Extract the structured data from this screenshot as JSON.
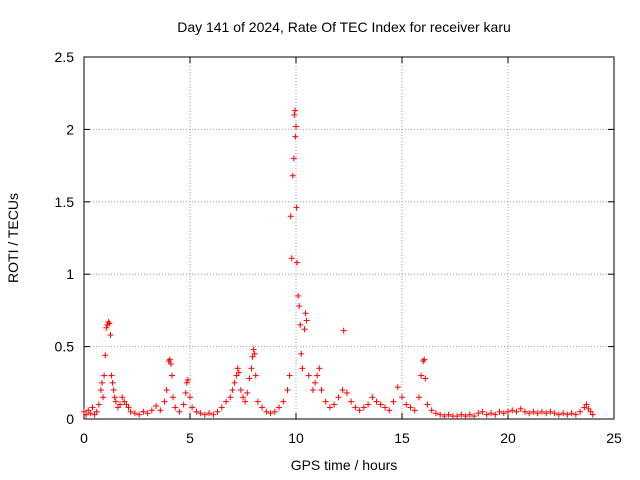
{
  "chart_data": {
    "type": "scatter",
    "title": "Day 141 of 2024, Rate Of TEC Index for receiver karu",
    "xlabel": "GPS time / hours",
    "ylabel": "ROTI / TECUs",
    "xlim": [
      0,
      25
    ],
    "ylim": [
      0,
      2.5
    ],
    "xticks": [
      "0",
      "5",
      "10",
      "15",
      "20",
      "25"
    ],
    "yticks": [
      "0",
      "0.5",
      "1",
      "1.5",
      "2",
      "2.5"
    ],
    "grid": true,
    "marker": "+",
    "color": "#ff0000",
    "series": [
      {
        "points": [
          [
            0.0,
            0.05
          ],
          [
            0.1,
            0.03
          ],
          [
            0.2,
            0.06
          ],
          [
            0.3,
            0.04
          ],
          [
            0.4,
            0.08
          ],
          [
            0.5,
            0.03
          ],
          [
            0.6,
            0.05
          ],
          [
            0.7,
            0.1
          ],
          [
            0.8,
            0.2
          ],
          [
            0.85,
            0.25
          ],
          [
            0.9,
            0.15
          ],
          [
            0.95,
            0.3
          ],
          [
            1.0,
            0.44
          ],
          [
            1.05,
            0.63
          ],
          [
            1.1,
            0.65
          ],
          [
            1.15,
            0.67
          ],
          [
            1.2,
            0.66
          ],
          [
            1.25,
            0.58
          ],
          [
            1.3,
            0.3
          ],
          [
            1.35,
            0.25
          ],
          [
            1.4,
            0.2
          ],
          [
            1.45,
            0.15
          ],
          [
            1.5,
            0.12
          ],
          [
            1.6,
            0.08
          ],
          [
            1.7,
            0.1
          ],
          [
            1.8,
            0.15
          ],
          [
            1.9,
            0.12
          ],
          [
            2.0,
            0.1
          ],
          [
            2.1,
            0.08
          ],
          [
            2.2,
            0.05
          ],
          [
            2.4,
            0.04
          ],
          [
            2.6,
            0.03
          ],
          [
            2.8,
            0.05
          ],
          [
            3.0,
            0.04
          ],
          [
            3.2,
            0.06
          ],
          [
            3.4,
            0.09
          ],
          [
            3.6,
            0.06
          ],
          [
            3.8,
            0.12
          ],
          [
            3.9,
            0.2
          ],
          [
            4.0,
            0.4
          ],
          [
            4.05,
            0.41
          ],
          [
            4.1,
            0.38
          ],
          [
            4.15,
            0.3
          ],
          [
            4.2,
            0.15
          ],
          [
            4.3,
            0.08
          ],
          [
            4.5,
            0.05
          ],
          [
            4.7,
            0.1
          ],
          [
            4.8,
            0.18
          ],
          [
            4.85,
            0.25
          ],
          [
            4.9,
            0.27
          ],
          [
            5.0,
            0.15
          ],
          [
            5.1,
            0.08
          ],
          [
            5.3,
            0.05
          ],
          [
            5.5,
            0.04
          ],
          [
            5.7,
            0.03
          ],
          [
            5.9,
            0.04
          ],
          [
            6.1,
            0.03
          ],
          [
            6.3,
            0.05
          ],
          [
            6.5,
            0.08
          ],
          [
            6.7,
            0.12
          ],
          [
            6.9,
            0.15
          ],
          [
            7.0,
            0.2
          ],
          [
            7.1,
            0.25
          ],
          [
            7.2,
            0.3
          ],
          [
            7.25,
            0.35
          ],
          [
            7.3,
            0.32
          ],
          [
            7.4,
            0.2
          ],
          [
            7.5,
            0.15
          ],
          [
            7.6,
            0.12
          ],
          [
            7.7,
            0.18
          ],
          [
            7.8,
            0.28
          ],
          [
            7.9,
            0.35
          ],
          [
            7.95,
            0.43
          ],
          [
            8.0,
            0.48
          ],
          [
            8.05,
            0.45
          ],
          [
            8.1,
            0.3
          ],
          [
            8.2,
            0.12
          ],
          [
            8.4,
            0.08
          ],
          [
            8.6,
            0.05
          ],
          [
            8.8,
            0.04
          ],
          [
            9.0,
            0.05
          ],
          [
            9.2,
            0.08
          ],
          [
            9.4,
            0.12
          ],
          [
            9.6,
            0.2
          ],
          [
            9.7,
            0.3
          ],
          [
            9.75,
            1.4
          ],
          [
            9.8,
            1.11
          ],
          [
            9.85,
            1.68
          ],
          [
            9.9,
            1.8
          ],
          [
            9.92,
            2.1
          ],
          [
            9.95,
            2.13
          ],
          [
            9.97,
            1.95
          ],
          [
            10.0,
            2.02
          ],
          [
            10.02,
            1.46
          ],
          [
            10.05,
            1.08
          ],
          [
            10.1,
            0.85
          ],
          [
            10.15,
            0.78
          ],
          [
            10.2,
            0.65
          ],
          [
            10.25,
            0.45
          ],
          [
            10.3,
            0.35
          ],
          [
            10.4,
            0.62
          ],
          [
            10.45,
            0.73
          ],
          [
            10.5,
            0.68
          ],
          [
            10.6,
            0.3
          ],
          [
            10.8,
            0.2
          ],
          [
            10.9,
            0.25
          ],
          [
            11.0,
            0.3
          ],
          [
            11.1,
            0.35
          ],
          [
            11.2,
            0.2
          ],
          [
            11.4,
            0.12
          ],
          [
            11.6,
            0.08
          ],
          [
            11.8,
            0.1
          ],
          [
            12.0,
            0.15
          ],
          [
            12.2,
            0.2
          ],
          [
            12.25,
            0.61
          ],
          [
            12.4,
            0.18
          ],
          [
            12.6,
            0.12
          ],
          [
            12.8,
            0.08
          ],
          [
            13.0,
            0.06
          ],
          [
            13.2,
            0.08
          ],
          [
            13.4,
            0.1
          ],
          [
            13.6,
            0.15
          ],
          [
            13.8,
            0.12
          ],
          [
            14.0,
            0.1
          ],
          [
            14.2,
            0.08
          ],
          [
            14.4,
            0.06
          ],
          [
            14.6,
            0.12
          ],
          [
            14.8,
            0.22
          ],
          [
            15.0,
            0.15
          ],
          [
            15.2,
            0.1
          ],
          [
            15.4,
            0.08
          ],
          [
            15.6,
            0.06
          ],
          [
            15.8,
            0.15
          ],
          [
            15.9,
            0.3
          ],
          [
            16.0,
            0.4
          ],
          [
            16.05,
            0.41
          ],
          [
            16.1,
            0.28
          ],
          [
            16.2,
            0.1
          ],
          [
            16.4,
            0.06
          ],
          [
            16.6,
            0.04
          ],
          [
            16.8,
            0.03
          ],
          [
            17.0,
            0.02
          ],
          [
            17.2,
            0.03
          ],
          [
            17.4,
            0.02
          ],
          [
            17.6,
            0.02
          ],
          [
            17.8,
            0.03
          ],
          [
            18.0,
            0.02
          ],
          [
            18.2,
            0.03
          ],
          [
            18.4,
            0.02
          ],
          [
            18.6,
            0.04
          ],
          [
            18.8,
            0.05
          ],
          [
            19.0,
            0.03
          ],
          [
            19.2,
            0.04
          ],
          [
            19.4,
            0.03
          ],
          [
            19.6,
            0.05
          ],
          [
            19.8,
            0.04
          ],
          [
            20.0,
            0.05
          ],
          [
            20.2,
            0.06
          ],
          [
            20.4,
            0.05
          ],
          [
            20.6,
            0.07
          ],
          [
            20.8,
            0.05
          ],
          [
            21.0,
            0.04
          ],
          [
            21.2,
            0.05
          ],
          [
            21.4,
            0.04
          ],
          [
            21.6,
            0.05
          ],
          [
            21.8,
            0.04
          ],
          [
            22.0,
            0.05
          ],
          [
            22.2,
            0.04
          ],
          [
            22.4,
            0.03
          ],
          [
            22.6,
            0.04
          ],
          [
            22.8,
            0.03
          ],
          [
            23.0,
            0.04
          ],
          [
            23.2,
            0.03
          ],
          [
            23.4,
            0.05
          ],
          [
            23.6,
            0.08
          ],
          [
            23.7,
            0.1
          ],
          [
            23.8,
            0.07
          ],
          [
            23.9,
            0.05
          ],
          [
            24.0,
            0.03
          ]
        ]
      }
    ]
  }
}
